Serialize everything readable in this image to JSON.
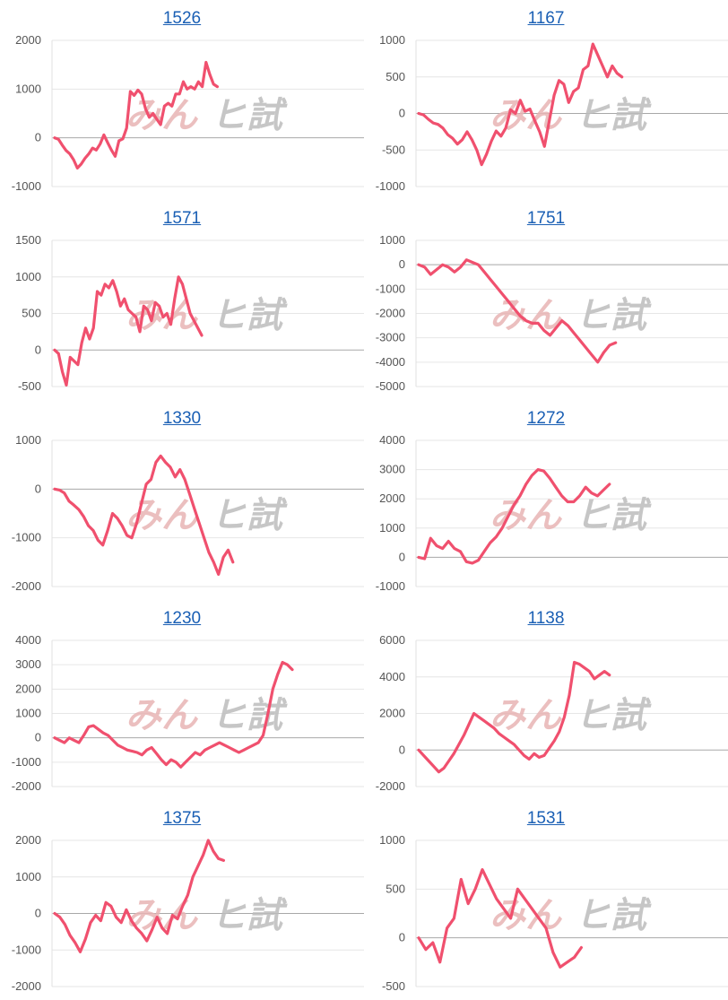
{
  "watermark": {
    "part1": "みん",
    "part2": "ヒ試"
  },
  "line_color": "#f0506e",
  "chart_data": [
    {
      "type": "line",
      "title": "1526",
      "ylim": [
        -1000,
        2000
      ],
      "ticks": [
        2000,
        1000,
        0,
        -1000
      ],
      "values": [
        0,
        -30,
        -150,
        -260,
        -330,
        -450,
        -620,
        -540,
        -420,
        -330,
        -210,
        -250,
        -130,
        60,
        -100,
        -250,
        -380,
        -60,
        -20,
        200,
        950,
        870,
        980,
        900,
        600,
        420,
        500,
        380,
        270,
        650,
        710,
        650,
        900,
        900,
        1150,
        1000,
        1050,
        1000,
        1150,
        1050,
        1550,
        1300,
        1100,
        1050
      ]
    },
    {
      "type": "line",
      "title": "1167",
      "ylim": [
        -1000,
        1000
      ],
      "ticks": [
        1000,
        500,
        0,
        -500,
        -1000
      ],
      "values": [
        0,
        -20,
        -80,
        -130,
        -150,
        -200,
        -290,
        -340,
        -420,
        -360,
        -250,
        -360,
        -500,
        -700,
        -560,
        -380,
        -240,
        -310,
        -200,
        50,
        0,
        180,
        30,
        60,
        -100,
        -250,
        -450,
        -100,
        250,
        450,
        400,
        150,
        300,
        350,
        600,
        650,
        950,
        800,
        650,
        500,
        650,
        550,
        500
      ]
    },
    {
      "type": "line",
      "title": "1571",
      "ylim": [
        -500,
        1500
      ],
      "ticks": [
        1500,
        1000,
        500,
        0,
        -500
      ],
      "values": [
        0,
        -50,
        -300,
        -480,
        -100,
        -150,
        -200,
        100,
        300,
        150,
        300,
        800,
        750,
        900,
        850,
        950,
        800,
        600,
        700,
        550,
        500,
        450,
        250,
        600,
        550,
        400,
        650,
        600,
        450,
        500,
        350,
        700,
        1000,
        900,
        700,
        500,
        400,
        300,
        200
      ]
    },
    {
      "type": "line",
      "title": "1751",
      "ylim": [
        -5000,
        1000
      ],
      "ticks": [
        1000,
        0,
        -1000,
        -2000,
        -3000,
        -4000,
        -5000
      ],
      "values": [
        0,
        -100,
        -400,
        -200,
        0,
        -100,
        -300,
        -100,
        200,
        100,
        0,
        -300,
        -600,
        -900,
        -1200,
        -1500,
        -1800,
        -2100,
        -2300,
        -2400,
        -2400,
        -2700,
        -2900,
        -2600,
        -2300,
        -2500,
        -2800,
        -3100,
        -3400,
        -3700,
        -4000,
        -3600,
        -3300,
        -3200
      ]
    },
    {
      "type": "line",
      "title": "1330",
      "ylim": [
        -2000,
        1000
      ],
      "ticks": [
        1000,
        0,
        -1000,
        -2000
      ],
      "values": [
        0,
        -20,
        -80,
        -250,
        -330,
        -420,
        -560,
        -750,
        -850,
        -1050,
        -1150,
        -850,
        -500,
        -600,
        -750,
        -950,
        -1000,
        -700,
        -300,
        100,
        200,
        550,
        680,
        550,
        450,
        250,
        400,
        200,
        -100,
        -400,
        -700,
        -1000,
        -1300,
        -1500,
        -1750,
        -1400,
        -1250,
        -1500
      ]
    },
    {
      "type": "line",
      "title": "1272",
      "ylim": [
        -1000,
        4000
      ],
      "ticks": [
        4000,
        3000,
        2000,
        1000,
        0,
        -1000
      ],
      "values": [
        0,
        -50,
        650,
        400,
        300,
        550,
        300,
        200,
        -150,
        -200,
        -100,
        200,
        500,
        700,
        1000,
        1400,
        1800,
        2100,
        2500,
        2800,
        3000,
        2950,
        2700,
        2400,
        2100,
        1900,
        1900,
        2100,
        2400,
        2200,
        2100,
        2300,
        2500
      ]
    },
    {
      "type": "line",
      "title": "1230",
      "ylim": [
        -2000,
        4000
      ],
      "ticks": [
        4000,
        3000,
        2000,
        1000,
        0,
        -1000,
        -2000
      ],
      "values": [
        0,
        -100,
        -200,
        0,
        -100,
        -200,
        100,
        450,
        500,
        350,
        200,
        100,
        -100,
        -300,
        -400,
        -500,
        -550,
        -600,
        -700,
        -500,
        -400,
        -650,
        -900,
        -1100,
        -900,
        -1000,
        -1200,
        -1000,
        -800,
        -600,
        -700,
        -500,
        -400,
        -300,
        -200,
        -300,
        -400,
        -500,
        -600,
        -500,
        -400,
        -300,
        -200,
        100,
        1000,
        2000,
        2600,
        3100,
        3000,
        2800
      ]
    },
    {
      "type": "line",
      "title": "1138",
      "ylim": [
        -2000,
        6000
      ],
      "ticks": [
        6000,
        4000,
        2000,
        0,
        -2000
      ],
      "values": [
        0,
        -300,
        -600,
        -900,
        -1200,
        -1000,
        -600,
        -200,
        300,
        800,
        1400,
        2000,
        1800,
        1600,
        1400,
        1200,
        900,
        700,
        500,
        300,
        0,
        -300,
        -500,
        -200,
        -400,
        -300,
        100,
        500,
        1000,
        1800,
        3000,
        4800,
        4700,
        4500,
        4300,
        3900,
        4100,
        4300,
        4100
      ]
    },
    {
      "type": "line",
      "title": "1375",
      "ylim": [
        -2000,
        2000
      ],
      "ticks": [
        2000,
        1000,
        0,
        -1000,
        -2000
      ],
      "values": [
        0,
        -100,
        -300,
        -600,
        -800,
        -1050,
        -700,
        -250,
        -50,
        -200,
        300,
        200,
        -100,
        -250,
        100,
        -200,
        -400,
        -550,
        -750,
        -450,
        -100,
        -400,
        -550,
        -50,
        -150,
        200,
        500,
        1000,
        1300,
        1600,
        2000,
        1700,
        1500,
        1450
      ]
    },
    {
      "type": "line",
      "title": "1531",
      "ylim": [
        -500,
        1000
      ],
      "ticks": [
        1000,
        500,
        0,
        -500
      ],
      "values": [
        0,
        -120,
        -50,
        -250,
        100,
        200,
        600,
        350,
        500,
        700,
        550,
        400,
        300,
        200,
        500,
        400,
        300,
        200,
        100,
        -150,
        -300,
        -250,
        -200,
        -100
      ]
    }
  ]
}
